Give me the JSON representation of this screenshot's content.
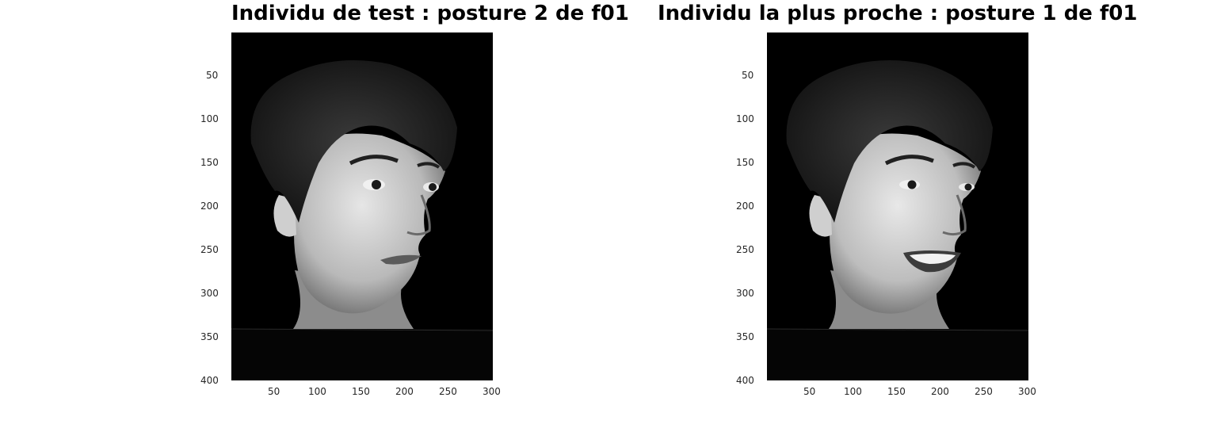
{
  "figure": {
    "panels": [
      {
        "title": "Individu de test : posture 2 de f01",
        "image_description": "grayscale face photo, woman with short dark hair, neutral expression, looking right",
        "expression": "neutral",
        "yticks": [
          "50",
          "100",
          "150",
          "200",
          "250",
          "300",
          "350",
          "400"
        ],
        "xticks": [
          "50",
          "100",
          "150",
          "200",
          "250",
          "300"
        ]
      },
      {
        "title": "Individu la plus proche : posture 1 de f01",
        "image_description": "grayscale face photo, same woman, smiling, looking right",
        "expression": "smile",
        "yticks": [
          "50",
          "100",
          "150",
          "200",
          "250",
          "300",
          "350",
          "400"
        ],
        "xticks": [
          "50",
          "100",
          "150",
          "200",
          "250",
          "300"
        ]
      }
    ],
    "colors": {
      "background": "#ffffff",
      "image_bg": "#000000",
      "text": "#262626"
    }
  }
}
